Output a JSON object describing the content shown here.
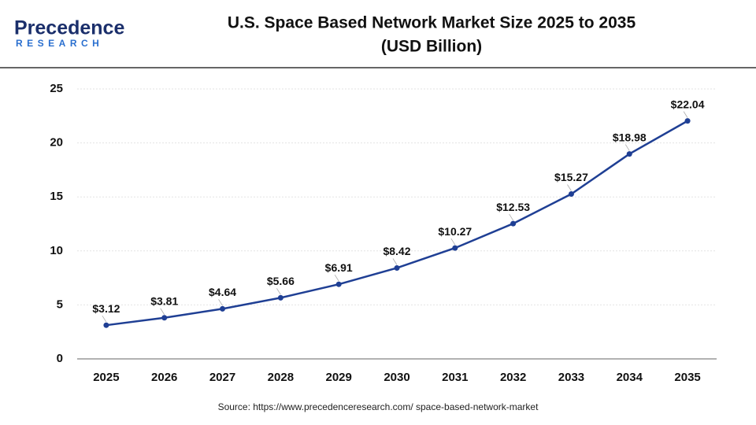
{
  "logo": {
    "name": "Precedence",
    "tagline": "RESEARCH"
  },
  "chart_data": {
    "type": "line",
    "title": "U.S. Space Based Network Market Size 2025 to 2035",
    "subtitle": "(USD Billion)",
    "categories": [
      "2025",
      "2026",
      "2027",
      "2028",
      "2029",
      "2030",
      "2031",
      "2032",
      "2033",
      "2034",
      "2035"
    ],
    "values": [
      3.12,
      3.81,
      4.64,
      5.66,
      6.91,
      8.42,
      10.27,
      12.53,
      15.27,
      18.98,
      22.04
    ],
    "value_labels": [
      "$3.12",
      "$3.81",
      "$4.64",
      "$5.66",
      "$6.91",
      "$8.42",
      "$10.27",
      "$12.53",
      "$15.27",
      "$18.98",
      "$22.04"
    ],
    "color": "#1f3f94",
    "ylim": [
      0,
      25
    ],
    "yticks": [
      0,
      5,
      10,
      15,
      20,
      25
    ],
    "grid": true,
    "source": "Source: https://www.precedenceresearch.com/ space-based-network-market"
  }
}
